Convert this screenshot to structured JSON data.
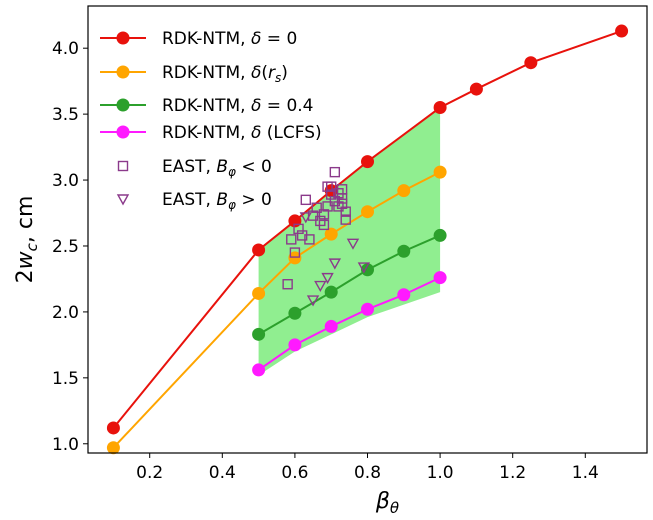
{
  "chart_data": {
    "type": "line",
    "xlabel_base": "β",
    "xlabel_sub": "θ",
    "ylabel_main": "2w",
    "ylabel_sub": "c",
    "ylabel_unit": ", cm",
    "xlim": [
      0.03,
      1.57
    ],
    "ylim": [
      0.93,
      4.32
    ],
    "xticks": [
      "0.2",
      "0.4",
      "0.6",
      "0.8",
      "1.0",
      "1.2",
      "1.4"
    ],
    "yticks": [
      "1.0",
      "1.5",
      "2.0",
      "2.5",
      "3.0",
      "3.5",
      "4.0"
    ],
    "legend_position": "top-left",
    "band": {
      "color": "#90ee90",
      "upper": [
        [
          0.5,
          2.47
        ],
        [
          0.6,
          2.69
        ],
        [
          0.7,
          2.92
        ],
        [
          0.8,
          3.14
        ],
        [
          1.0,
          3.55
        ]
      ],
      "lower": [
        [
          0.5,
          1.52
        ],
        [
          0.6,
          1.7
        ],
        [
          0.7,
          1.83
        ],
        [
          0.8,
          1.96
        ],
        [
          1.0,
          2.15
        ]
      ]
    },
    "series": [
      {
        "name": "RDK-NTM, δ = 0",
        "color": "#e8120c",
        "marker": "circle",
        "x": [
          0.1,
          0.5,
          0.6,
          0.7,
          0.8,
          1.0,
          1.1,
          1.25,
          1.5
        ],
        "y": [
          1.12,
          2.47,
          2.69,
          2.92,
          3.14,
          3.55,
          3.69,
          3.89,
          4.13
        ]
      },
      {
        "name": "RDK-NTM, δ(r_s)",
        "color": "#ffa500",
        "marker": "circle",
        "x": [
          0.1,
          0.5,
          0.6,
          0.7,
          0.8,
          0.9,
          1.0
        ],
        "y": [
          0.97,
          2.14,
          2.41,
          2.59,
          2.76,
          2.92,
          3.06
        ]
      },
      {
        "name": "RDK-NTM, δ = 0.4",
        "color": "#2ca02c",
        "marker": "circle",
        "x": [
          0.5,
          0.6,
          0.7,
          0.8,
          0.9,
          1.0
        ],
        "y": [
          1.83,
          1.99,
          2.15,
          2.32,
          2.46,
          2.58
        ]
      },
      {
        "name": "RDK-NTM, δ (LCFS)",
        "color": "#ff1aff",
        "marker": "circle",
        "x": [
          0.5,
          0.6,
          0.7,
          0.8,
          0.9,
          1.0
        ],
        "y": [
          1.56,
          1.75,
          1.89,
          2.02,
          2.13,
          2.26
        ]
      },
      {
        "name": "EAST, B_φ < 0",
        "color": "#8b3a8b",
        "marker": "square",
        "points": [
          [
            0.58,
            2.21
          ],
          [
            0.59,
            2.55
          ],
          [
            0.6,
            2.45
          ],
          [
            0.61,
            2.63
          ],
          [
            0.62,
            2.58
          ],
          [
            0.63,
            2.85
          ],
          [
            0.64,
            2.55
          ],
          [
            0.65,
            2.73
          ],
          [
            0.66,
            2.79
          ],
          [
            0.67,
            2.69
          ],
          [
            0.68,
            2.74
          ],
          [
            0.68,
            2.66
          ],
          [
            0.69,
            2.95
          ],
          [
            0.69,
            2.8
          ],
          [
            0.7,
            2.89
          ],
          [
            0.7,
            2.95
          ],
          [
            0.71,
            3.06
          ],
          [
            0.71,
            2.84
          ],
          [
            0.72,
            2.9
          ],
          [
            0.72,
            2.8
          ],
          [
            0.73,
            2.93
          ],
          [
            0.73,
            2.86
          ],
          [
            0.74,
            2.76
          ],
          [
            0.74,
            2.7
          ],
          [
            0.73,
            2.82
          ]
        ]
      },
      {
        "name": "EAST, B_φ > 0",
        "color": "#8b3a8b",
        "marker": "triangle-down",
        "points": [
          [
            0.63,
            2.72
          ],
          [
            0.65,
            2.09
          ],
          [
            0.67,
            2.2
          ],
          [
            0.69,
            2.26
          ],
          [
            0.71,
            2.37
          ],
          [
            0.76,
            2.52
          ],
          [
            0.79,
            2.34
          ]
        ]
      }
    ],
    "legend": [
      {
        "pre": "RDK-NTM, ",
        "delta": "δ",
        "post": " = 0",
        "sub": ""
      },
      {
        "pre": "RDK-NTM, ",
        "delta": "δ",
        "post": ")",
        "mid": "(r",
        "sub": "s"
      },
      {
        "pre": "RDK-NTM, ",
        "delta": "δ",
        "post": " = 0.4",
        "sub": ""
      },
      {
        "pre": "RDK-NTM, ",
        "delta": "δ",
        "post": " (LCFS)",
        "sub": ""
      },
      {
        "pre": "EAST, ",
        "sym": "B",
        "sub": "φ",
        "post": " < 0"
      },
      {
        "pre": "EAST, ",
        "sym": "B",
        "sub": "φ",
        "post": " > 0"
      }
    ]
  }
}
